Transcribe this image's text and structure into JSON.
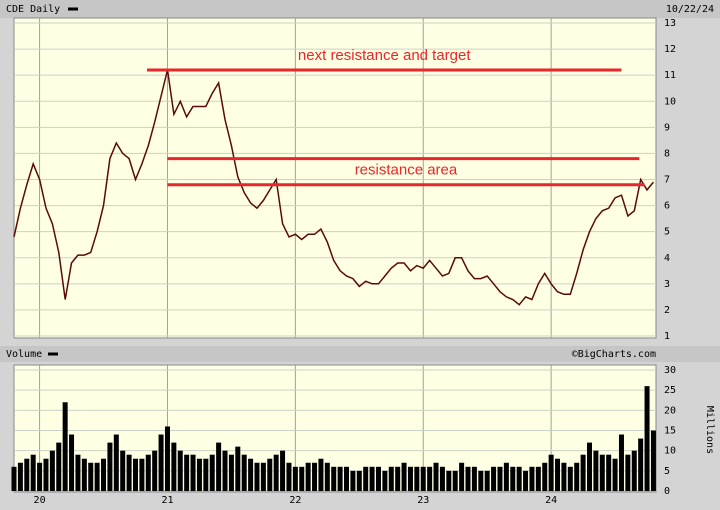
{
  "chart_data": [
    {
      "type": "line",
      "series": [
        {
          "name": "CDE Daily",
          "color": "#5a0a0a",
          "values": [
            4.8,
            5.9,
            6.8,
            7.6,
            7.0,
            5.9,
            5.3,
            4.2,
            2.4,
            3.8,
            4.1,
            4.1,
            4.2,
            5.0,
            6.0,
            7.8,
            8.4,
            8.0,
            7.8,
            7.0,
            7.6,
            8.3,
            9.2,
            10.2,
            11.2,
            9.5,
            10.0,
            9.4,
            9.8,
            9.8,
            9.8,
            10.3,
            10.7,
            9.3,
            8.3,
            7.1,
            6.5,
            6.1,
            5.9,
            6.2,
            6.6,
            7.0,
            5.3,
            4.8,
            4.9,
            4.7,
            4.9,
            4.9,
            5.1,
            4.6,
            3.9,
            3.5,
            3.3,
            3.2,
            2.9,
            3.1,
            3.0,
            3.0,
            3.3,
            3.6,
            3.8,
            3.8,
            3.5,
            3.7,
            3.6,
            3.9,
            3.6,
            3.3,
            3.4,
            4.0,
            4.0,
            3.5,
            3.2,
            3.2,
            3.3,
            3.0,
            2.7,
            2.5,
            2.4,
            2.2,
            2.5,
            2.4,
            3.0,
            3.4,
            3.0,
            2.7,
            2.6,
            2.6,
            3.4,
            4.3,
            5.0,
            5.5,
            5.8,
            5.9,
            6.3,
            6.4,
            5.6,
            5.8,
            7.0,
            6.6,
            6.9
          ]
        }
      ],
      "x": [
        19.8,
        19.85,
        19.9,
        19.95,
        20.0,
        20.05,
        20.1,
        20.15,
        20.2,
        20.25,
        20.3,
        20.35,
        20.4,
        20.45,
        20.5,
        20.55,
        20.6,
        20.65,
        20.7,
        20.75,
        20.8,
        20.85,
        20.9,
        20.95,
        21.0,
        21.05,
        21.1,
        21.15,
        21.2,
        21.25,
        21.3,
        21.35,
        21.4,
        21.45,
        21.5,
        21.55,
        21.6,
        21.65,
        21.7,
        21.75,
        21.8,
        21.85,
        21.9,
        21.95,
        22.0,
        22.05,
        22.1,
        22.15,
        22.2,
        22.25,
        22.3,
        22.35,
        22.4,
        22.45,
        22.5,
        22.55,
        22.6,
        22.65,
        22.7,
        22.75,
        22.8,
        22.85,
        22.9,
        22.95,
        23.0,
        23.05,
        23.1,
        23.15,
        23.2,
        23.25,
        23.3,
        23.35,
        23.4,
        23.45,
        23.5,
        23.55,
        23.6,
        23.65,
        23.7,
        23.75,
        23.8,
        23.85,
        23.9,
        23.95,
        24.0,
        24.05,
        24.1,
        24.15,
        24.2,
        24.25,
        24.3,
        24.35,
        24.4,
        24.45,
        24.5,
        24.55,
        24.6,
        24.65,
        24.7,
        24.75,
        24.8
      ],
      "xlim": [
        19.8,
        24.82
      ],
      "ylim": [
        1,
        13
      ],
      "yticks": [
        1,
        2,
        3,
        4,
        5,
        6,
        7,
        8,
        9,
        10,
        11,
        12,
        13
      ],
      "grid": true,
      "date": "10/22/24",
      "hline_color": "#e8262b",
      "hlines": [
        {
          "value": 11.2,
          "from": 20.84,
          "to": 24.55,
          "label": "next resistance and target"
        },
        {
          "value": 7.8,
          "from": 21.0,
          "to": 24.69
        },
        {
          "value": 6.8,
          "from": 21.0,
          "to": 24.73,
          "label": "resistance area"
        }
      ]
    },
    {
      "type": "bar",
      "series": [
        {
          "name": "Volume",
          "color": "#000000",
          "values": [
            6,
            7,
            8,
            9,
            7,
            8,
            10,
            12,
            22,
            14,
            9,
            8,
            7,
            7,
            8,
            12,
            14,
            10,
            9,
            8,
            8,
            9,
            10,
            14,
            16,
            12,
            10,
            9,
            9,
            8,
            8,
            9,
            12,
            10,
            9,
            11,
            9,
            8,
            7,
            7,
            8,
            9,
            10,
            7,
            6,
            6,
            7,
            7,
            8,
            7,
            6,
            6,
            6,
            5,
            5,
            6,
            6,
            6,
            5,
            6,
            6,
            7,
            6,
            6,
            6,
            6,
            7,
            6,
            5,
            5,
            7,
            6,
            6,
            5,
            5,
            6,
            6,
            7,
            6,
            6,
            5,
            6,
            6,
            7,
            9,
            8,
            7,
            6,
            7,
            9,
            12,
            10,
            9,
            9,
            8,
            14,
            9,
            10,
            13,
            26,
            15
          ]
        }
      ],
      "x": [
        19.8,
        19.85,
        19.9,
        19.95,
        20.0,
        20.05,
        20.1,
        20.15,
        20.2,
        20.25,
        20.3,
        20.35,
        20.4,
        20.45,
        20.5,
        20.55,
        20.6,
        20.65,
        20.7,
        20.75,
        20.8,
        20.85,
        20.9,
        20.95,
        21.0,
        21.05,
        21.1,
        21.15,
        21.2,
        21.25,
        21.3,
        21.35,
        21.4,
        21.45,
        21.5,
        21.55,
        21.6,
        21.65,
        21.7,
        21.75,
        21.8,
        21.85,
        21.9,
        21.95,
        22.0,
        22.05,
        22.1,
        22.15,
        22.2,
        22.25,
        22.3,
        22.35,
        22.4,
        22.45,
        22.5,
        22.55,
        22.6,
        22.65,
        22.7,
        22.75,
        22.8,
        22.85,
        22.9,
        22.95,
        23.0,
        23.05,
        23.1,
        23.15,
        23.2,
        23.25,
        23.3,
        23.35,
        23.4,
        23.45,
        23.5,
        23.55,
        23.6,
        23.65,
        23.7,
        23.75,
        23.8,
        23.85,
        23.9,
        23.95,
        24.0,
        24.05,
        24.1,
        24.15,
        24.2,
        24.25,
        24.3,
        24.35,
        24.4,
        24.45,
        24.5,
        24.55,
        24.6,
        24.65,
        24.7,
        24.75,
        24.8
      ],
      "xlim": [
        19.8,
        24.82
      ],
      "xticks": [
        20,
        21,
        22,
        23,
        24
      ],
      "ylim": [
        0,
        30
      ],
      "yticks": [
        0,
        5,
        10,
        15,
        20,
        25,
        30
      ],
      "grid": true,
      "ylabel": "Millions",
      "source": "©BigCharts.com"
    }
  ]
}
